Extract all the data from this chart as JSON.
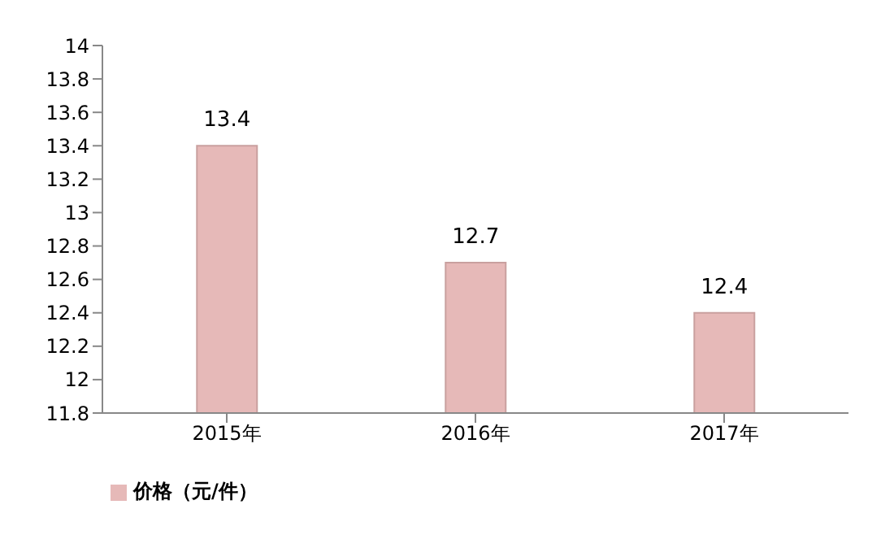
{
  "chart_data": {
    "type": "bar",
    "categories": [
      "2015年",
      "2016年",
      "2017年"
    ],
    "series": [
      {
        "name": "价格（元/件）",
        "color": "#e6b9b8",
        "values": [
          13.4,
          12.7,
          12.4
        ]
      }
    ],
    "ylim": [
      11.8,
      14
    ],
    "yticks": [
      11.8,
      12,
      12.2,
      12.4,
      12.6,
      12.8,
      13,
      13.2,
      13.4,
      13.6,
      13.8,
      14
    ],
    "data_labels": true,
    "grid": false,
    "legend": "bottom"
  }
}
